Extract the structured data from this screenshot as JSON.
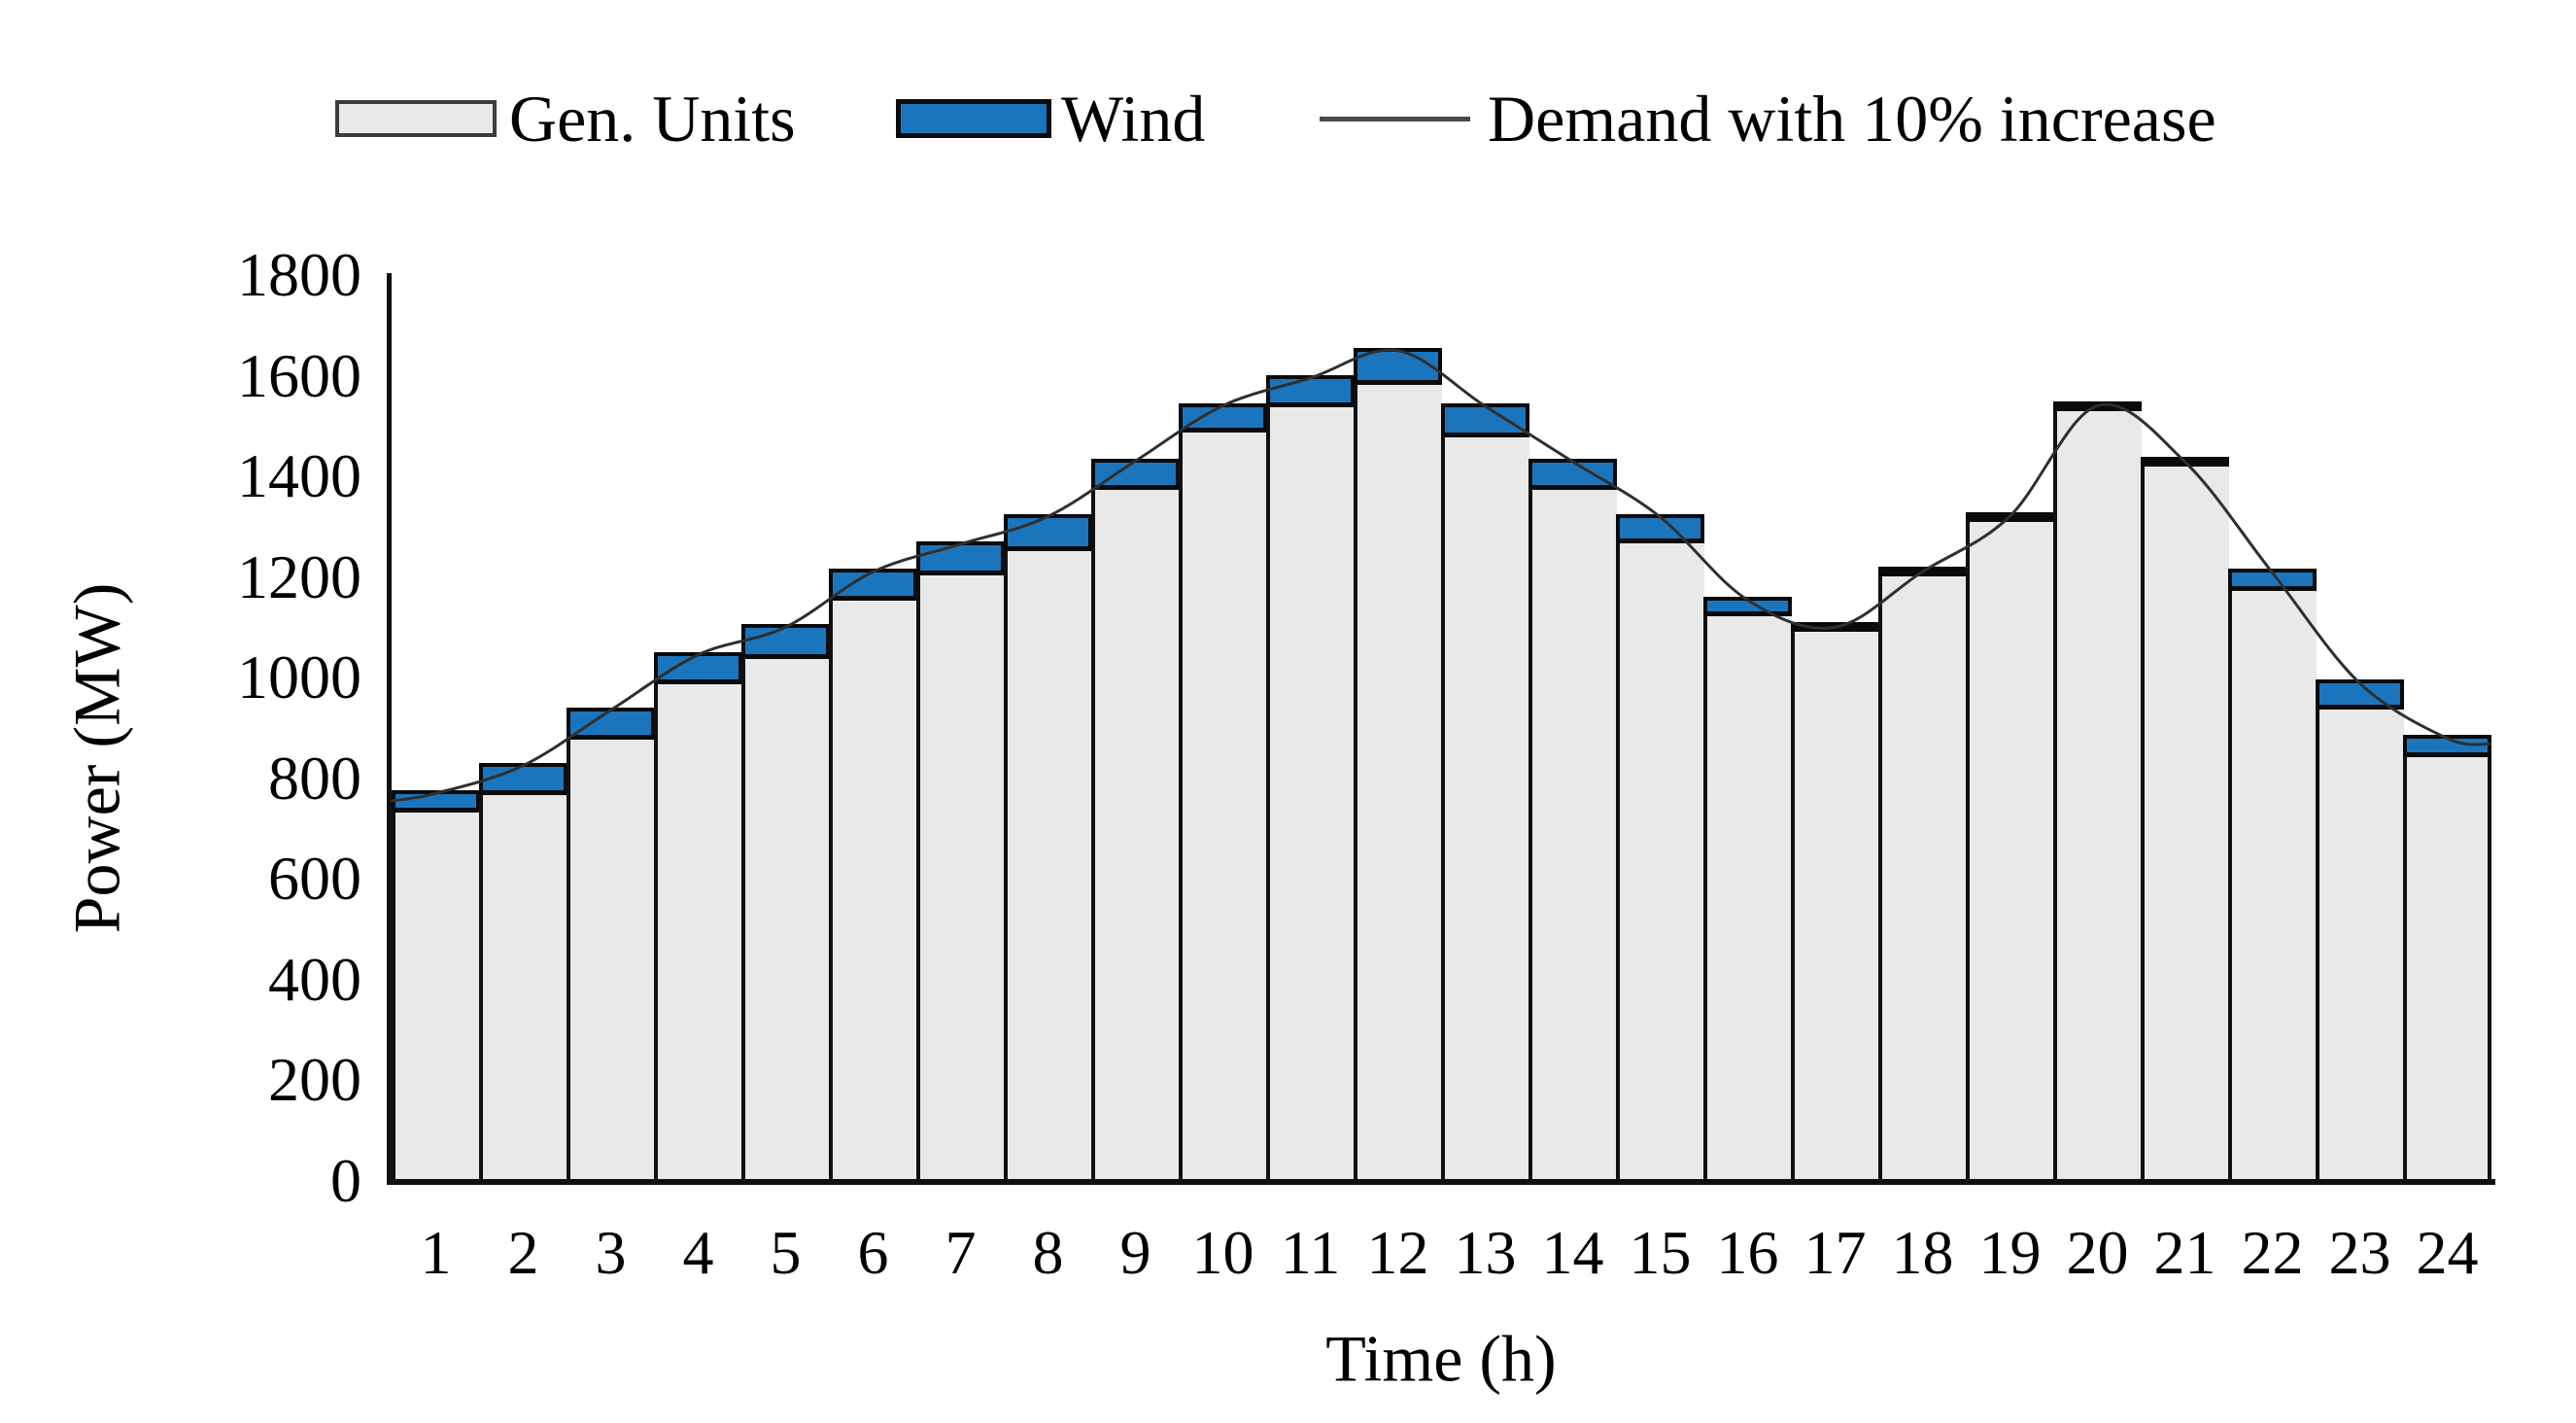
{
  "figure": {
    "background": "#ffffff"
  },
  "legend": {
    "position": "top",
    "items": [
      {
        "label": "Gen. Units",
        "type": "box",
        "fill": "#e9e9e9",
        "border": "#3c3c3c"
      },
      {
        "label": "Wind",
        "type": "box",
        "fill": "#1b75bc",
        "border": "#0a0a0a"
      },
      {
        "label": "Demand with 10% increase",
        "type": "line",
        "stroke": "#4a4a4a"
      }
    ]
  },
  "axes": {
    "y_label": "Power (MW)",
    "x_label": "Time (h)",
    "y_ticks": [
      0,
      200,
      400,
      600,
      800,
      1000,
      1200,
      1400,
      1600,
      1800
    ],
    "y_max": 1800
  },
  "chart_data": {
    "type": "bar",
    "stacked": true,
    "title": "",
    "xlabel": "Time (h)",
    "ylabel": "Power (MW)",
    "ylim": [
      0,
      1800
    ],
    "grid": false,
    "legend_position": "top",
    "categories": [
      1,
      2,
      3,
      4,
      5,
      6,
      7,
      8,
      9,
      10,
      11,
      12,
      13,
      14,
      15,
      16,
      17,
      18,
      19,
      20,
      21,
      22,
      23,
      24
    ],
    "series": [
      {
        "name": "Gen. Units",
        "color": "#e9e9e9",
        "values": [
          740,
          775,
          885,
          995,
          1045,
          1160,
          1210,
          1260,
          1380,
          1495,
          1545,
          1590,
          1485,
          1380,
          1275,
          1130,
          1100,
          1210,
          1320,
          1540,
          1430,
          1180,
          945,
          850
        ]
      },
      {
        "name": "Wind",
        "color": "#1b75bc",
        "values": [
          30,
          50,
          50,
          50,
          55,
          50,
          55,
          60,
          50,
          45,
          50,
          60,
          55,
          50,
          45,
          25,
          0,
          0,
          0,
          0,
          0,
          30,
          45,
          30
        ]
      }
    ],
    "line": {
      "name": "Demand with 10% increase",
      "color": "#2f2f2f",
      "values": [
        770,
        825,
        935,
        1045,
        1100,
        1210,
        1265,
        1320,
        1430,
        1540,
        1595,
        1650,
        1540,
        1430,
        1320,
        1155,
        1100,
        1210,
        1320,
        1540,
        1430,
        1210,
        990,
        880
      ]
    }
  }
}
